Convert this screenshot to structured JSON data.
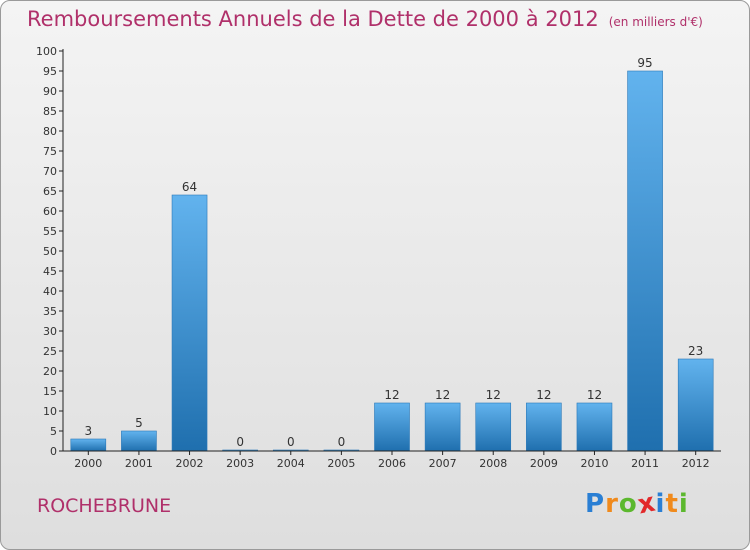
{
  "title": "Remboursements Annuels de la Dette de 2000 à 2012",
  "unit_label": "(en milliers d'€)",
  "place": "ROCHEBRUNE",
  "logo": {
    "text": "Proxiti",
    "letters": [
      "P",
      "r",
      "o",
      "x",
      "i",
      "t",
      "i"
    ],
    "colors": [
      "#2a7fd4",
      "#f08a1c",
      "#5cb82e",
      "#e2282a",
      "#2a7fd4",
      "#f08a1c",
      "#5cb82e"
    ]
  },
  "colors": {
    "bar_top": "#62b3ee",
    "bar_bottom": "#1f6fae",
    "title": "#b0306a"
  },
  "chart_data": {
    "type": "bar",
    "categories": [
      "2000",
      "2001",
      "2002",
      "2003",
      "2004",
      "2005",
      "2006",
      "2007",
      "2008",
      "2009",
      "2010",
      "2011",
      "2012"
    ],
    "values": [
      3,
      5,
      64,
      0,
      0,
      0,
      12,
      12,
      12,
      12,
      12,
      95,
      23
    ],
    "title": "Remboursements Annuels de la Dette de 2000 à 2012",
    "xlabel": "",
    "ylabel": "",
    "ylim": [
      0,
      100
    ],
    "yticks": [
      0,
      5,
      10,
      15,
      20,
      25,
      30,
      35,
      40,
      45,
      50,
      55,
      60,
      65,
      70,
      75,
      80,
      85,
      90,
      95,
      100
    ],
    "grid": false,
    "data_labels": true
  }
}
